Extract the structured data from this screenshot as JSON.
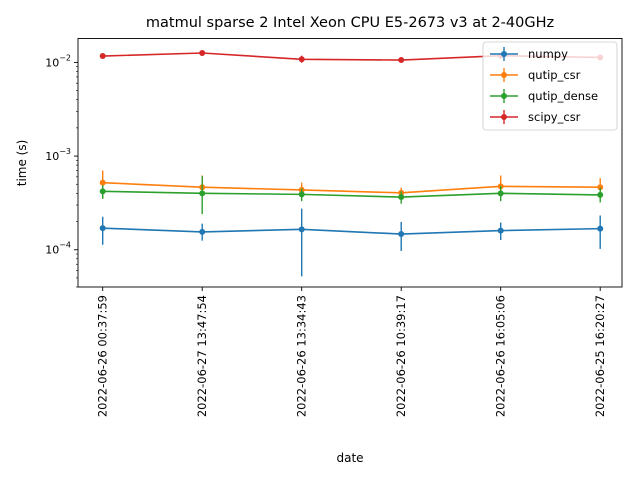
{
  "chart_data": {
    "type": "line",
    "title": "matmul sparse 2 Intel Xeon CPU E5-2673 v3 at 2-40GHz",
    "xlabel": "date",
    "ylabel": "time (s)",
    "yscale": "log",
    "ylim": [
      4e-05,
      0.018
    ],
    "y_ticks": [
      {
        "value": 0.0001,
        "base": "10",
        "exp": "−4"
      },
      {
        "value": 0.001,
        "base": "10",
        "exp": "−3"
      },
      {
        "value": 0.01,
        "base": "10",
        "exp": "−2"
      }
    ],
    "categories": [
      "2022-06-26 00:37:59",
      "2022-06-27 13:47:54",
      "2022-06-26 13:34:43",
      "2022-06-26 10:39:17",
      "2022-06-26 16:05:06",
      "2022-06-25 16:20:27"
    ],
    "legend_position": "top-right",
    "grid": false,
    "series": [
      {
        "name": "numpy",
        "color": "#1f77b4",
        "values": [
          0.00017,
          0.000155,
          0.000165,
          0.000147,
          0.00016,
          0.000168
        ],
        "err_low": [
          0.000113,
          0.000125,
          5.2e-05,
          9.7e-05,
          0.000127,
          0.000102
        ],
        "err_high": [
          0.000225,
          0.00019,
          0.000275,
          0.000198,
          0.000195,
          0.000232
        ]
      },
      {
        "name": "qutip_csr",
        "color": "#ff7f0e",
        "values": [
          0.00052,
          0.000465,
          0.000435,
          0.000405,
          0.000475,
          0.000465
        ],
        "err_low": [
          0.00035,
          0.00038,
          0.000365,
          0.000345,
          0.00037,
          0.00037
        ],
        "err_high": [
          0.0007,
          0.00062,
          0.00052,
          0.00046,
          0.00062,
          0.00058
        ]
      },
      {
        "name": "qutip_dense",
        "color": "#2ca02c",
        "values": [
          0.00042,
          0.0004,
          0.00039,
          0.000365,
          0.0004,
          0.000385
        ],
        "err_low": [
          0.00035,
          0.00024,
          0.00033,
          0.00031,
          0.00033,
          0.00032
        ],
        "err_high": [
          0.00049,
          0.00061,
          0.00045,
          0.00042,
          0.00048,
          0.00046
        ]
      },
      {
        "name": "scipy_csr",
        "color": "#d62728",
        "values": [
          0.0117,
          0.0126,
          0.0108,
          0.0106,
          0.0118,
          0.0113
        ],
        "err_low": [
          0.0112,
          0.012,
          0.0099,
          0.0101,
          0.0112,
          0.0108
        ],
        "err_high": [
          0.0122,
          0.0132,
          0.0118,
          0.0111,
          0.0124,
          0.0118
        ]
      }
    ]
  }
}
